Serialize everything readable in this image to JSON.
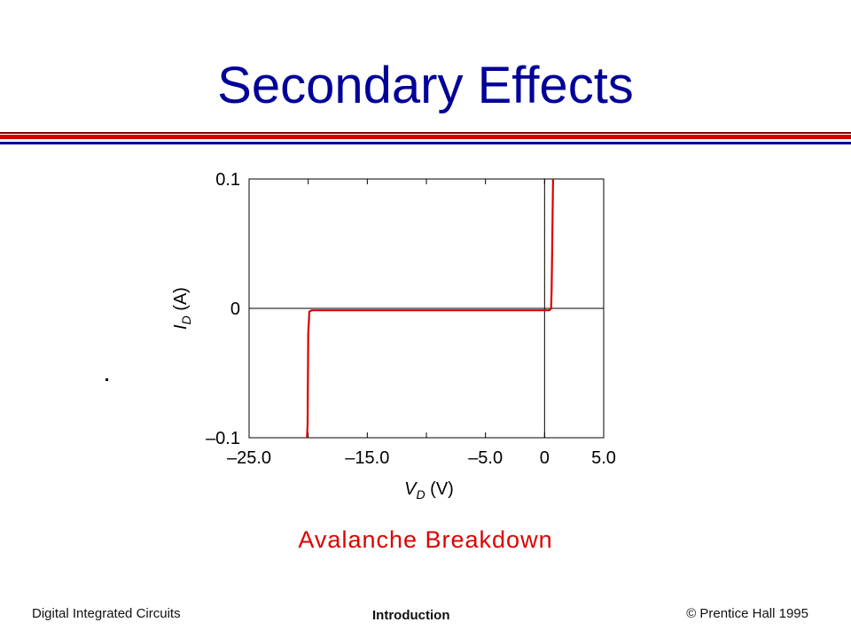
{
  "slide": {
    "title": "Secondary Effects",
    "annotation": "Avalanche Breakdown",
    "footer_left": "Digital Integrated Circuits",
    "footer_center": "Introduction",
    "footer_right": "© Prentice Hall 1995"
  },
  "colors": {
    "title": "#000099",
    "rule_red": "#cc0000",
    "rule_blue": "#000099",
    "curve": "#dd0000",
    "annotation": "#dd0000"
  },
  "chart_data": {
    "type": "line",
    "title": "",
    "xlabel": {
      "var": "V",
      "sub": "D",
      "unit": "(V)"
    },
    "ylabel": {
      "var": "I",
      "sub": "D",
      "unit": "(A)"
    },
    "xlim": [
      -25,
      5
    ],
    "ylim": [
      -0.1,
      0.1
    ],
    "xticks": [
      -25,
      -15,
      -5,
      0,
      5
    ],
    "xtick_labels": [
      "–25.0",
      "–15.0",
      "–5.0",
      "0",
      "5.0"
    ],
    "yticks": [
      -0.1,
      0,
      0.1
    ],
    "ytick_labels": [
      "–0.1",
      "0",
      "0.1"
    ],
    "grid": false,
    "series": [
      {
        "x": [
          -20.1,
          -20.05,
          -20.0,
          -19.9,
          -19.7,
          -10,
          -5,
          0,
          0.4,
          0.55,
          0.6,
          0.65,
          0.7,
          0.72
        ],
        "y": [
          -0.1,
          -0.09,
          -0.02,
          -0.0025,
          -0.0015,
          -0.0015,
          -0.0015,
          -0.0015,
          -0.0015,
          0.0,
          0.015,
          0.05,
          0.09,
          0.1
        ]
      }
    ]
  }
}
